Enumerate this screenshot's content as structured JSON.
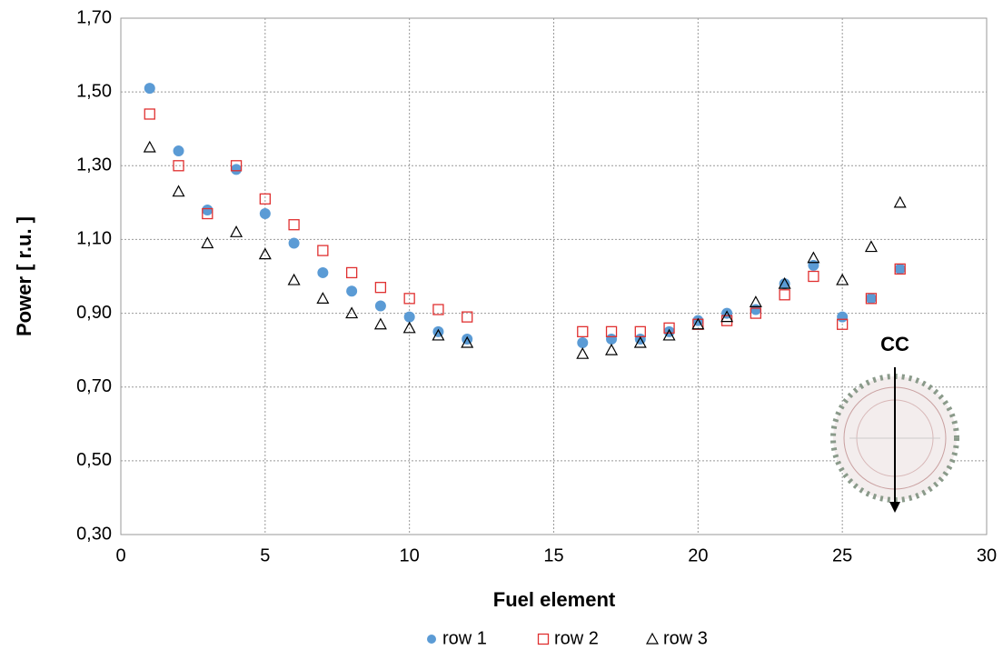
{
  "chart_data": {
    "type": "scatter",
    "xlabel": "Fuel element",
    "ylabel": "Power [ r.u. ]",
    "annotation": "CC",
    "xlim": [
      0,
      30
    ],
    "xticks": [
      0,
      5,
      10,
      15,
      20,
      25,
      30
    ],
    "ylim": [
      0.3,
      1.7
    ],
    "yticks": [
      {
        "value": 0.3,
        "label": "0,30"
      },
      {
        "value": 0.5,
        "label": "0,50"
      },
      {
        "value": 0.7,
        "label": "0,70"
      },
      {
        "value": 0.9,
        "label": "0,90"
      },
      {
        "value": 1.1,
        "label": "1,10"
      },
      {
        "value": 1.3,
        "label": "1,30"
      },
      {
        "value": 1.5,
        "label": "1,50"
      },
      {
        "value": 1.7,
        "label": "1,70"
      }
    ],
    "grid": true,
    "legend": "bottom",
    "x": [
      1,
      2,
      3,
      4,
      5,
      6,
      7,
      8,
      9,
      10,
      11,
      12,
      16,
      17,
      18,
      19,
      20,
      21,
      22,
      23,
      24,
      25,
      26,
      27
    ],
    "series": [
      {
        "name": "row 1",
        "color": "#5b9bd5",
        "marker": "circle",
        "values": [
          1.51,
          1.34,
          1.18,
          1.29,
          1.17,
          1.09,
          1.01,
          0.96,
          0.92,
          0.89,
          0.85,
          0.83,
          0.82,
          0.83,
          0.83,
          0.85,
          0.88,
          0.9,
          0.91,
          0.98,
          1.03,
          0.89,
          0.94,
          1.02
        ]
      },
      {
        "name": "row 2",
        "color": "#e03030",
        "marker": "square",
        "values": [
          1.44,
          1.3,
          1.17,
          1.3,
          1.21,
          1.14,
          1.07,
          1.01,
          0.97,
          0.94,
          0.91,
          0.89,
          0.85,
          0.85,
          0.85,
          0.86,
          0.87,
          0.88,
          0.9,
          0.95,
          1.0,
          0.87,
          0.94,
          1.02
        ]
      },
      {
        "name": "row 3",
        "color": "#000000",
        "marker": "triangle",
        "values": [
          1.35,
          1.23,
          1.09,
          1.12,
          1.06,
          0.99,
          0.94,
          0.9,
          0.87,
          0.86,
          0.84,
          0.82,
          0.79,
          0.8,
          0.82,
          0.84,
          0.87,
          0.89,
          0.93,
          0.98,
          1.05,
          0.99,
          1.08,
          1.2
        ]
      }
    ]
  }
}
